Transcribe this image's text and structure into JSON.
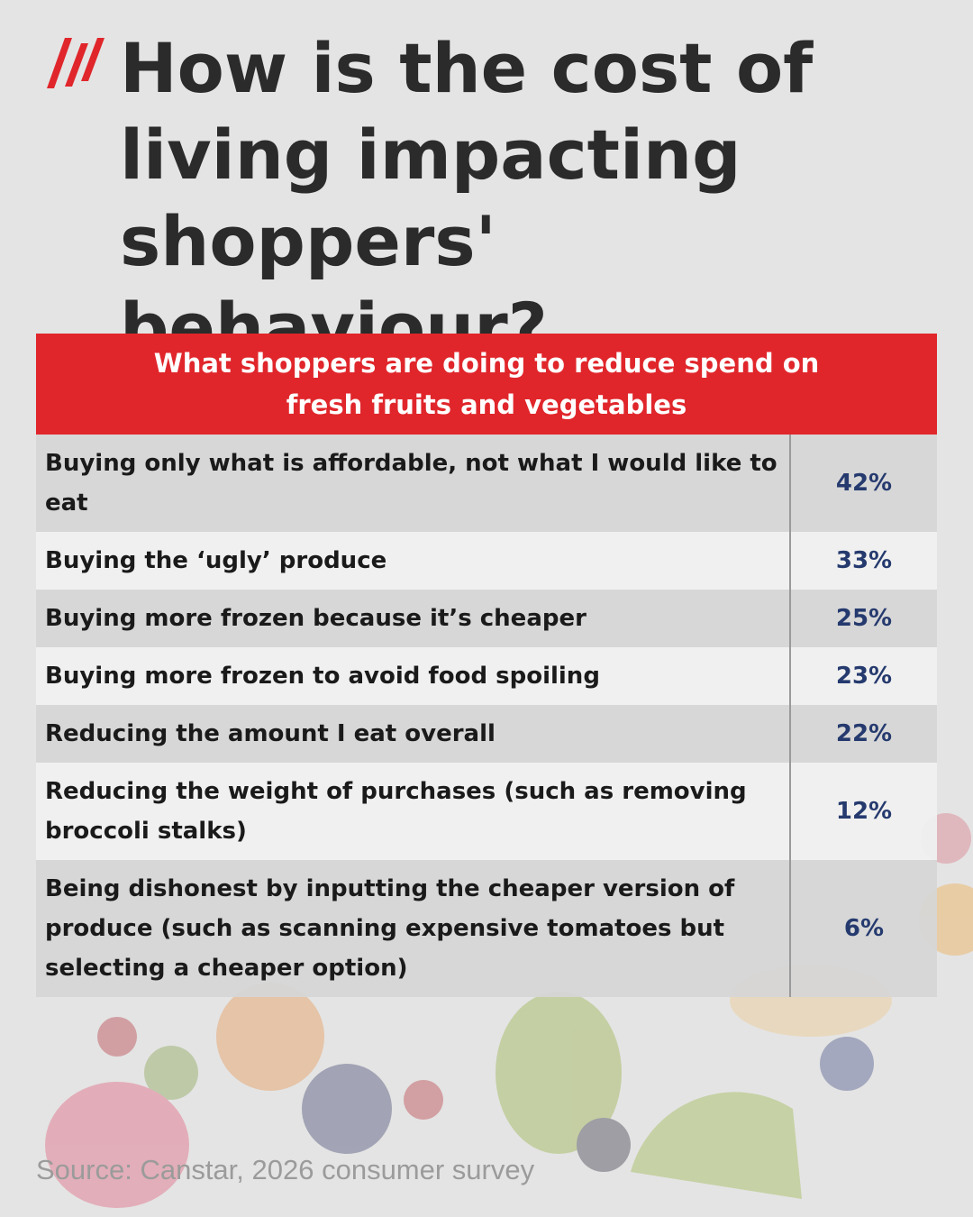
{
  "header": {
    "title": "How is the cost of living impacting shoppers' behaviour?"
  },
  "table": {
    "heading": "What shoppers are doing to reduce spend on fresh fruits and vegetables",
    "rows": [
      [
        "Buying only what is affordable, not what I would like to eat",
        "42%"
      ],
      [
        "Buying the ‘ugly’ produce",
        "33%"
      ],
      [
        "Buying more frozen because it’s cheaper",
        "25%"
      ],
      [
        "Buying more frozen to avoid food spoiling",
        "23%"
      ],
      [
        "Reducing the amount I eat overall",
        "22%"
      ],
      [
        "Reducing the weight of purchases (such as removing broccoli stalks)",
        "12%"
      ],
      [
        "Being dishonest by inputting the cheaper version of produce (such as scanning expensive tomatoes but selecting a cheaper option)",
        "6%"
      ]
    ]
  },
  "footer": {
    "source": "Source: Canstar, 2026 consumer survey"
  }
}
